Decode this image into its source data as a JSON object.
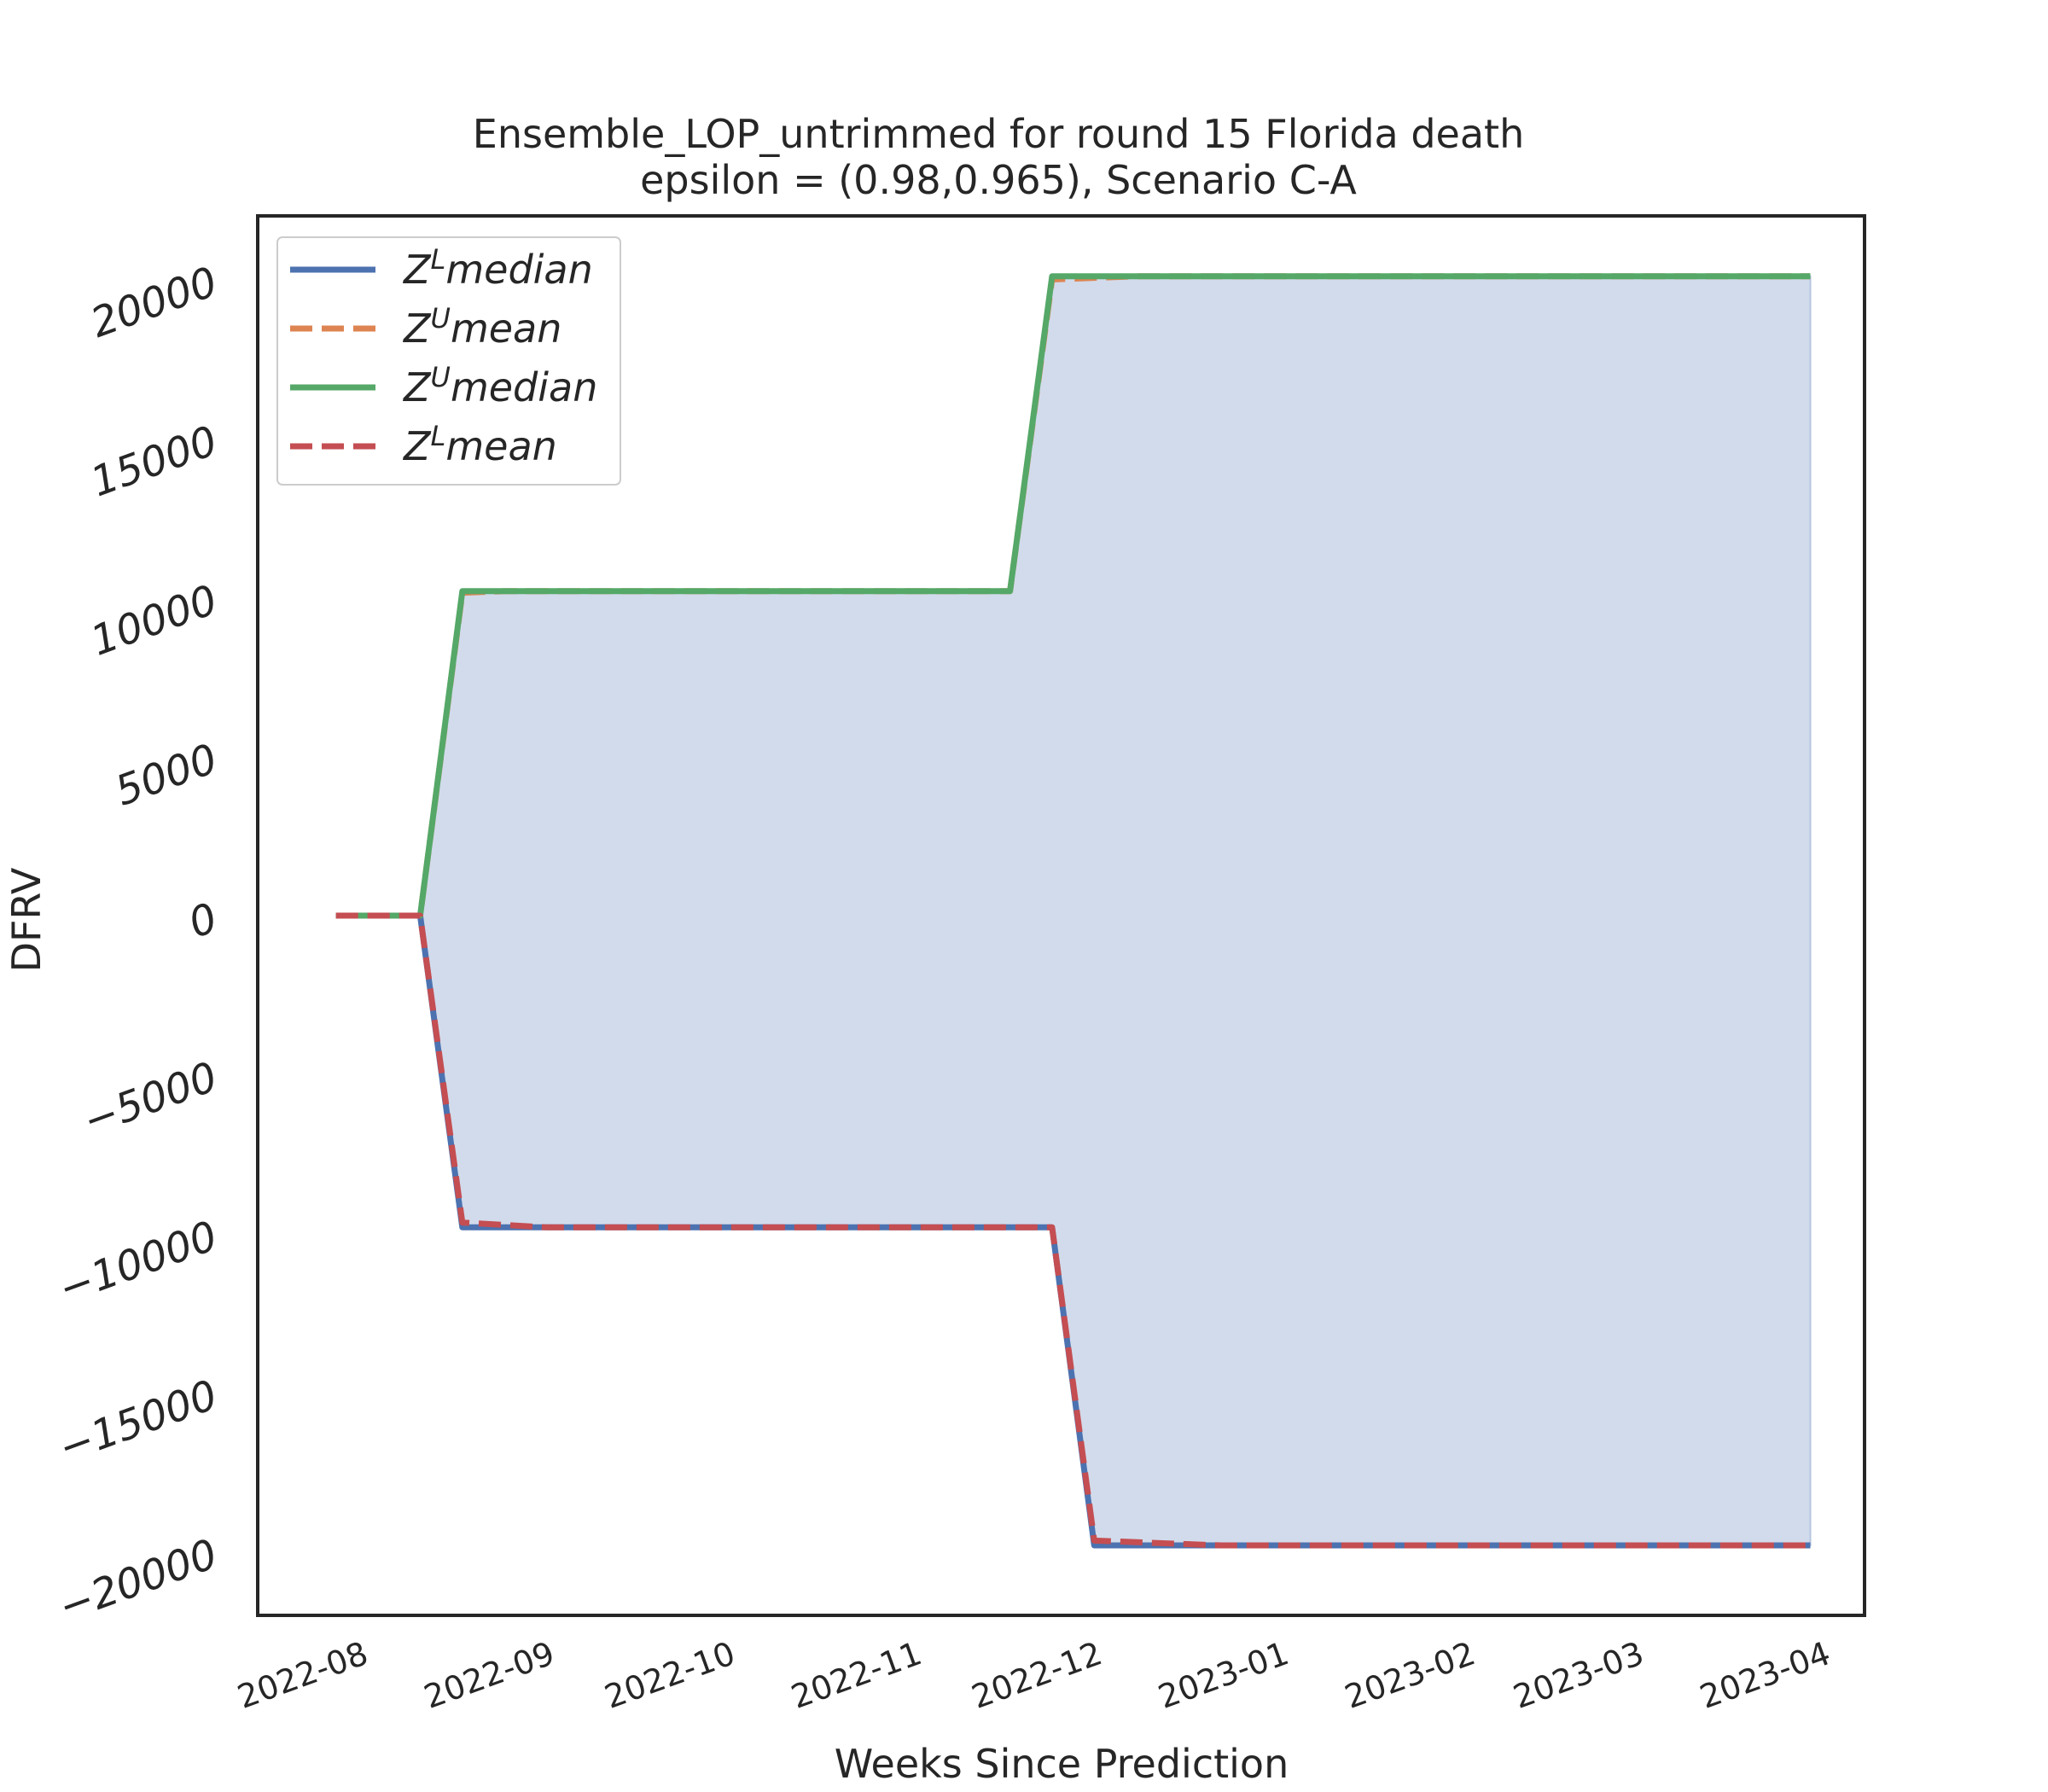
{
  "chart_data": {
    "type": "line",
    "title": "Ensemble_LOP_untrimmed for round 15 Florida  death",
    "subtitle": "epsilon = (0.98,0.965), Scenario C-A",
    "xlabel": "Weeks Since Prediction",
    "ylabel": "DFRV",
    "ylim": [
      -22000,
      22000
    ],
    "xlim": [
      "2022-07-14",
      "2023-04-07"
    ],
    "yticks": [
      -20000,
      -15000,
      -10000,
      -5000,
      0,
      5000,
      10000,
      15000,
      20000
    ],
    "ytick_labels": [
      "−20000",
      "−15000",
      "−10000",
      "−5000",
      "0",
      "5000",
      "10000",
      "15000",
      "20000"
    ],
    "xticks": [
      "2022-08-01",
      "2022-09-01",
      "2022-10-01",
      "2022-11-01",
      "2022-12-01",
      "2023-01-01",
      "2023-02-01",
      "2023-03-01",
      "2023-04-01"
    ],
    "xtick_labels": [
      "2022-08",
      "2022-09",
      "2022-10",
      "2022-11",
      "2022-12",
      "2023-01",
      "2023-02",
      "2023-03",
      "2023-04"
    ],
    "grid": false,
    "legend_position": "top-left",
    "fill_between": {
      "upper": "Z^U median",
      "lower": "Z^L median",
      "color": "#d2dbeb"
    },
    "x": [
      "2022-07-27",
      "2022-08-10",
      "2022-08-17",
      "2022-11-23",
      "2022-11-30",
      "2023-03-29"
    ],
    "series": [
      {
        "name_base": "Z",
        "name_sup": "L",
        "name_rest": "median",
        "color": "#4c72b0",
        "dash": false,
        "x": [
          "2022-07-27",
          "2022-08-10",
          "2022-08-17",
          "2022-11-23",
          "2022-11-30",
          "2023-03-29"
        ],
        "values": [
          0,
          0,
          -9800,
          -9800,
          -19800,
          -19800
        ]
      },
      {
        "name_base": "Z",
        "name_sup": "U",
        "name_rest": "mean",
        "color": "#dd8452",
        "dash": true,
        "x": [
          "2022-07-27",
          "2022-08-10",
          "2022-08-17",
          "2022-08-24",
          "2022-11-16",
          "2022-11-23",
          "2022-12-07",
          "2023-03-29"
        ],
        "values": [
          0,
          0,
          10150,
          10200,
          10200,
          20000,
          20100,
          20100
        ]
      },
      {
        "name_base": "Z",
        "name_sup": "U",
        "name_rest": "median",
        "color": "#55a868",
        "dash": false,
        "x": [
          "2022-07-27",
          "2022-08-10",
          "2022-08-17",
          "2022-11-16",
          "2022-11-23",
          "2023-03-29"
        ],
        "values": [
          0,
          0,
          10200,
          10200,
          20100,
          20100
        ]
      },
      {
        "name_base": "Z",
        "name_sup": "L",
        "name_rest": "mean",
        "color": "#c44e52",
        "dash": true,
        "x": [
          "2022-07-27",
          "2022-08-10",
          "2022-08-17",
          "2022-08-31",
          "2022-11-23",
          "2022-11-30",
          "2022-12-21",
          "2023-03-29"
        ],
        "values": [
          0,
          0,
          -9650,
          -9800,
          -9800,
          -19650,
          -19800,
          -19800
        ]
      }
    ]
  }
}
